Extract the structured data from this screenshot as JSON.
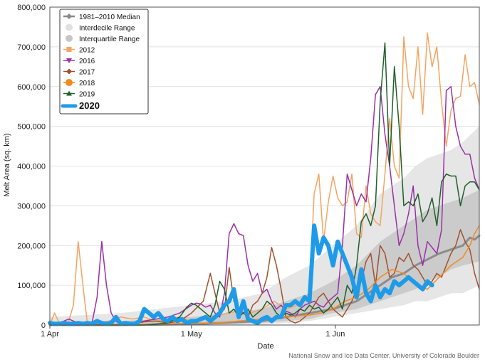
{
  "chart_data": {
    "type": "line",
    "xlabel": "Date",
    "ylabel": "Melt Area (sq. km)",
    "ylim": [
      0,
      800000
    ],
    "yticks": [
      0,
      100000,
      200000,
      300000,
      400000,
      500000,
      600000,
      700000,
      800000
    ],
    "ytick_labels": [
      "0",
      "100,000",
      "200,000",
      "300,000",
      "400,000",
      "500,000",
      "600,000",
      "700,000",
      "800,000"
    ],
    "xlim": [
      0,
      182
    ],
    "xticks": [
      {
        "day": 0,
        "label": "1 Apr"
      },
      {
        "day": 60,
        "label": "1 May"
      },
      {
        "day": 121,
        "label": "1 Jun"
      }
    ],
    "grid": true,
    "legend_position": "top-left",
    "legend": [
      {
        "label": "1981–2010 Median",
        "kind": "line-diamond",
        "color": "#888888"
      },
      {
        "label": "Interdecile Range",
        "kind": "circle",
        "color": "#e0e0e0"
      },
      {
        "label": "Interquartile Range",
        "kind": "circle",
        "color": "#c6c6c6"
      },
      {
        "label": "2012",
        "kind": "square",
        "color": "#f4a460"
      },
      {
        "label": "2016",
        "kind": "triangle-down",
        "color": "#9b30a8"
      },
      {
        "label": "2017",
        "kind": "diamond",
        "color": "#a0522d"
      },
      {
        "label": "2018",
        "kind": "circle",
        "color": "#f5891e"
      },
      {
        "label": "2019",
        "kind": "triangle-up",
        "color": "#1f5f2b"
      },
      {
        "label": "2020",
        "kind": "circle",
        "color": "#1e9be8",
        "bold": true
      }
    ],
    "bands": {
      "interdecile": {
        "color": "#e6e6e6",
        "x": [
          0,
          15,
          30,
          45,
          60,
          75,
          90,
          100,
          110,
          120,
          130,
          140,
          150,
          155,
          160,
          165,
          170,
          175,
          182
        ],
        "low": [
          0,
          0,
          0,
          0,
          0,
          0,
          0,
          5000,
          10000,
          20000,
          30000,
          40000,
          50000,
          60000,
          60000,
          70000,
          80000,
          80000,
          100000
        ],
        "high": [
          20000,
          25000,
          30000,
          40000,
          50000,
          60000,
          80000,
          120000,
          150000,
          200000,
          250000,
          330000,
          370000,
          400000,
          420000,
          430000,
          440000,
          460000,
          500000
        ]
      },
      "interquartile": {
        "color": "#cbcbcb",
        "x": [
          0,
          30,
          60,
          90,
          100,
          110,
          120,
          130,
          140,
          150,
          155,
          160,
          165,
          170,
          175,
          182
        ],
        "low": [
          0,
          0,
          0,
          5000,
          10000,
          15000,
          30000,
          40000,
          60000,
          80000,
          90000,
          110000,
          120000,
          140000,
          150000,
          160000
        ],
        "high": [
          5000,
          10000,
          20000,
          40000,
          60000,
          80000,
          110000,
          150000,
          210000,
          250000,
          270000,
          290000,
          300000,
          310000,
          320000,
          340000
        ]
      }
    },
    "series": [
      {
        "name": "1981–2010 Median",
        "color": "#8c8c8c",
        "width": 3,
        "x": [
          0,
          30,
          60,
          90,
          100,
          110,
          115,
          120,
          125,
          130,
          135,
          140,
          145,
          150,
          155,
          160,
          165,
          170,
          175,
          178,
          180,
          182
        ],
        "y": [
          0,
          0,
          2000,
          10000,
          20000,
          30000,
          35000,
          40000,
          50000,
          60000,
          80000,
          100000,
          120000,
          130000,
          150000,
          165000,
          180000,
          190000,
          200000,
          220000,
          215000,
          225000
        ]
      },
      {
        "name": "2012",
        "color": "#f4a460",
        "width": 1.5,
        "x": [
          0,
          2,
          4,
          6,
          8,
          10,
          12,
          14,
          16,
          18,
          20,
          25,
          30,
          35,
          40,
          45,
          50,
          55,
          60,
          65,
          70,
          75,
          80,
          85,
          90,
          95,
          100,
          105,
          110,
          112,
          114,
          116,
          118,
          120,
          122,
          124,
          126,
          128,
          130,
          132,
          134,
          136,
          138,
          140,
          142,
          144,
          146,
          148,
          150,
          152,
          154,
          156,
          158,
          160,
          162,
          164,
          166,
          168,
          170,
          172,
          174,
          176,
          178,
          180,
          182
        ],
        "y": [
          0,
          30000,
          5000,
          0,
          10000,
          50000,
          210000,
          100000,
          0,
          0,
          5000,
          10000,
          20000,
          15000,
          20000,
          10000,
          15000,
          20000,
          10000,
          15000,
          20000,
          30000,
          35000,
          30000,
          40000,
          60000,
          40000,
          50000,
          80000,
          330000,
          380000,
          210000,
          310000,
          375000,
          320000,
          300000,
          310000,
          380000,
          230000,
          220000,
          350000,
          280000,
          260000,
          250000,
          380000,
          520000,
          400000,
          370000,
          725000,
          600000,
          570000,
          700000,
          530000,
          735000,
          650000,
          700000,
          560000,
          450000,
          540000,
          570000,
          575000,
          680000,
          600000,
          610000,
          555000
        ]
      },
      {
        "name": "2016",
        "color": "#9b30a8",
        "width": 1.5,
        "x": [
          0,
          4,
          6,
          8,
          10,
          12,
          14,
          16,
          18,
          20,
          22,
          24,
          26,
          28,
          30,
          35,
          40,
          45,
          50,
          55,
          60,
          62,
          64,
          66,
          68,
          70,
          72,
          74,
          76,
          78,
          80,
          82,
          84,
          86,
          88,
          90,
          92,
          94,
          96,
          98,
          100,
          102,
          104,
          106,
          108,
          110,
          112,
          114,
          116,
          118,
          120,
          122,
          124,
          126,
          128,
          130,
          132,
          134,
          136,
          138,
          140,
          142,
          144,
          146,
          148,
          150,
          152,
          154,
          156,
          158,
          160,
          164,
          166,
          168,
          170,
          172,
          174,
          176,
          178,
          180,
          182
        ],
        "y": [
          0,
          5000,
          10000,
          15000,
          10000,
          5000,
          3000,
          5000,
          8000,
          70000,
          210000,
          100000,
          30000,
          10000,
          0,
          5000,
          10000,
          15000,
          20000,
          30000,
          50000,
          55000,
          53000,
          45000,
          50000,
          30000,
          20000,
          80000,
          230000,
          255000,
          230000,
          225000,
          150000,
          110000,
          130000,
          80000,
          90000,
          60000,
          40000,
          50000,
          35000,
          30000,
          20000,
          40000,
          50000,
          55000,
          60000,
          50000,
          45000,
          60000,
          70000,
          80000,
          200000,
          380000,
          340000,
          300000,
          330000,
          310000,
          420000,
          580000,
          600000,
          480000,
          400000,
          300000,
          200000,
          230000,
          280000,
          350000,
          200000,
          150000,
          210000,
          180000,
          240000,
          590000,
          600000,
          500000,
          450000,
          430000,
          430000,
          370000,
          340000
        ]
      },
      {
        "name": "2017",
        "color": "#a0522d",
        "width": 1.5,
        "x": [
          0,
          30,
          35,
          40,
          45,
          50,
          55,
          60,
          65,
          68,
          70,
          72,
          74,
          76,
          78,
          80,
          82,
          84,
          86,
          88,
          90,
          92,
          94,
          96,
          98,
          100,
          102,
          104,
          106,
          108,
          110,
          112,
          114,
          116,
          118,
          120,
          122,
          124,
          126,
          128,
          130,
          132,
          134,
          136,
          138,
          140,
          142,
          144,
          146,
          148,
          150,
          152,
          154,
          156,
          158,
          160,
          162,
          164,
          166,
          168,
          170,
          172,
          174,
          176,
          178,
          180,
          182
        ],
        "y": [
          0,
          0,
          3000,
          8000,
          10000,
          5000,
          10000,
          30000,
          60000,
          130000,
          80000,
          30000,
          40000,
          145000,
          60000,
          40000,
          30000,
          20000,
          50000,
          60000,
          80000,
          120000,
          195000,
          150000,
          90000,
          20000,
          10000,
          5000,
          10000,
          20000,
          30000,
          50000,
          70000,
          80000,
          60000,
          40000,
          30000,
          20000,
          40000,
          60000,
          90000,
          110000,
          160000,
          180000,
          100000,
          200000,
          180000,
          120000,
          130000,
          170000,
          160000,
          180000,
          150000,
          140000,
          120000,
          100000,
          110000,
          130000,
          120000,
          150000,
          180000,
          200000,
          240000,
          210000,
          190000,
          130000,
          90000
        ]
      },
      {
        "name": "2018",
        "color": "#f5891e",
        "width": 1.5,
        "x": [
          0,
          30,
          40,
          50,
          60,
          70,
          80,
          90,
          100,
          110,
          115,
          120,
          125,
          130,
          135,
          140,
          145,
          150,
          155,
          160,
          165,
          170,
          175,
          178,
          180,
          182
        ],
        "y": [
          0,
          0,
          2000,
          3000,
          5000,
          5000,
          10000,
          15000,
          20000,
          25000,
          30000,
          40000,
          60000,
          70000,
          90000,
          120000,
          140000,
          130000,
          100000,
          90000,
          120000,
          150000,
          170000,
          200000,
          230000,
          250000
        ]
      },
      {
        "name": "2019",
        "color": "#1f5f2b",
        "width": 1.5,
        "x": [
          0,
          30,
          40,
          50,
          55,
          58,
          60,
          62,
          64,
          66,
          68,
          70,
          72,
          74,
          76,
          78,
          80,
          82,
          84,
          86,
          88,
          90,
          92,
          94,
          96,
          98,
          100,
          102,
          104,
          106,
          108,
          110,
          112,
          114,
          116,
          118,
          120,
          122,
          124,
          126,
          128,
          130,
          132,
          134,
          136,
          138,
          140,
          142,
          144,
          146,
          148,
          150,
          152,
          154,
          156,
          158,
          160,
          162,
          164,
          166,
          168,
          170,
          172,
          174,
          176,
          178,
          180,
          182
        ],
        "y": [
          0,
          0,
          0,
          5000,
          20000,
          45000,
          55000,
          50000,
          40000,
          30000,
          20000,
          50000,
          110000,
          90000,
          30000,
          40000,
          20000,
          30000,
          40000,
          20000,
          30000,
          40000,
          60000,
          50000,
          30000,
          20000,
          30000,
          25000,
          30000,
          40000,
          35000,
          50000,
          40000,
          45000,
          30000,
          40000,
          55000,
          70000,
          40000,
          100000,
          80000,
          150000,
          260000,
          280000,
          250000,
          300000,
          560000,
          710000,
          400000,
          650000,
          500000,
          300000,
          310000,
          300000,
          330000,
          260000,
          280000,
          320000,
          250000,
          360000,
          380000,
          375000,
          375000,
          300000,
          350000,
          360000,
          360000,
          340000
        ]
      },
      {
        "name": "2020",
        "color": "#1e9be8",
        "width": 6,
        "x": [
          0,
          2,
          4,
          6,
          8,
          10,
          12,
          14,
          16,
          18,
          20,
          22,
          24,
          26,
          28,
          30,
          32,
          34,
          36,
          38,
          40,
          42,
          44,
          46,
          48,
          50,
          52,
          54,
          56,
          58,
          60,
          62,
          64,
          66,
          68,
          70,
          72,
          74,
          76,
          78,
          80,
          82,
          84,
          86,
          88,
          90,
          92,
          94,
          96,
          98,
          100,
          102,
          104,
          106,
          108,
          110,
          112,
          114,
          116,
          118,
          120,
          122,
          124,
          126,
          128,
          130,
          132,
          134,
          136,
          138,
          140,
          142,
          144,
          146,
          148,
          150,
          152,
          154,
          156,
          158,
          160,
          162
        ],
        "y": [
          5000,
          3000,
          3000,
          5000,
          3000,
          3000,
          5000,
          3000,
          5000,
          3000,
          10000,
          5000,
          3000,
          5000,
          20000,
          3000,
          5000,
          3000,
          3000,
          10000,
          40000,
          30000,
          20000,
          30000,
          15000,
          10000,
          20000,
          10000,
          15000,
          5000,
          10000,
          10000,
          15000,
          20000,
          10000,
          20000,
          30000,
          50000,
          60000,
          90000,
          20000,
          60000,
          15000,
          10000,
          5000,
          15000,
          20000,
          10000,
          20000,
          20000,
          50000,
          50000,
          60000,
          50000,
          70000,
          60000,
          250000,
          180000,
          220000,
          200000,
          150000,
          210000,
          180000,
          150000,
          120000,
          70000,
          140000,
          80000,
          60000,
          100000,
          70000,
          90000,
          80000,
          110000,
          100000,
          110000,
          120000,
          110000,
          100000,
          90000,
          110000,
          100000
        ]
      }
    ],
    "credit": "National Snow and Ice Data Center, University of Colorado Boulder"
  }
}
